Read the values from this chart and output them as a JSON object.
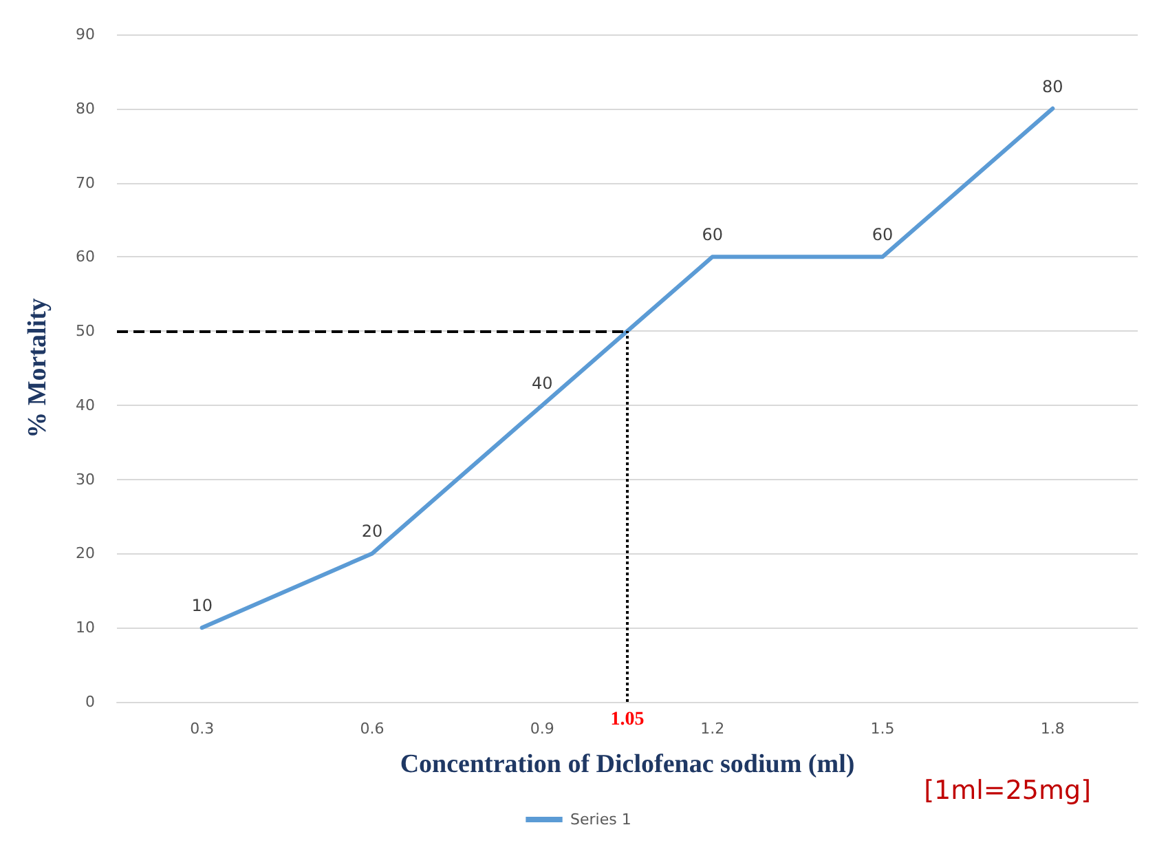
{
  "chart_data": {
    "type": "line",
    "xlabel": "Concentration of Diclofenac sodium (ml)",
    "ylabel": "% Mortality",
    "x": [
      0.3,
      0.6,
      0.9,
      1.2,
      1.5,
      1.8
    ],
    "series": [
      {
        "name": "Series 1",
        "color": "#5b9bd5",
        "values": [
          10,
          20,
          40,
          60,
          60,
          80
        ]
      }
    ],
    "xlim": [
      0.15,
      1.95
    ],
    "xticks": [
      0.3,
      0.6,
      0.9,
      1.2,
      1.5,
      1.8
    ],
    "ylim": [
      0,
      90
    ],
    "yticks": [
      0,
      10,
      20,
      30,
      40,
      50,
      60,
      70,
      80,
      90
    ],
    "ref_lines": [
      {
        "axis": "y",
        "value": 50,
        "color": "#000000",
        "line_style": "dashed"
      },
      {
        "axis": "x",
        "value": 1.05,
        "label": "1.05",
        "color": "#000000",
        "line_style": "dotted"
      }
    ],
    "annotations": [
      "[1ml=25mg]"
    ],
    "data_labels": true,
    "grid": "y",
    "legend": "bottom",
    "marker": "none",
    "line_style": "solid"
  }
}
